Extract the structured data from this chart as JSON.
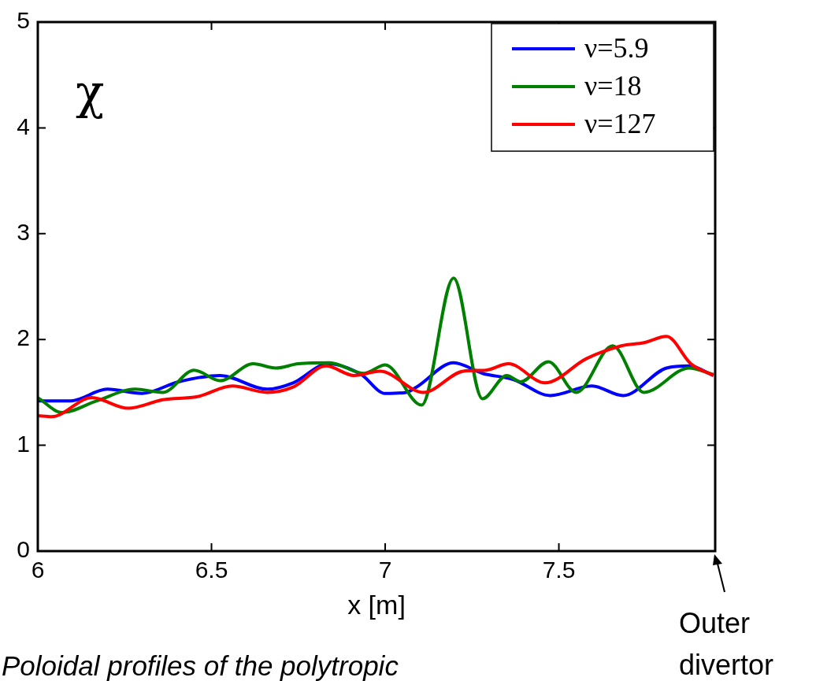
{
  "chart_data": {
    "type": "line",
    "xlabel": "x [m]",
    "xlim": [
      6,
      7.95
    ],
    "xticks": [
      6,
      6.5,
      7,
      7.5
    ],
    "ylim": [
      0,
      5
    ],
    "yticks": [
      0,
      1,
      2,
      3,
      4,
      5
    ],
    "grid": false,
    "legend": "top right",
    "marker": "none",
    "line_style": "solid",
    "annotations": [
      "χ",
      "Poloidal profiles of the polytropic",
      "Outer divertor"
    ],
    "series": [
      {
        "name": "ν=5.9",
        "color": "#0000ff",
        "x": [
          6.0,
          6.095,
          6.2,
          6.3,
          6.405,
          6.525,
          6.66,
          6.735,
          6.835,
          6.93,
          7.0,
          7.06,
          7.09,
          7.197,
          7.28,
          7.37,
          7.475,
          7.595,
          7.685,
          7.81,
          7.875,
          7.945
        ],
        "values": [
          1.42,
          1.42,
          1.53,
          1.49,
          1.6,
          1.66,
          1.53,
          1.59,
          1.77,
          1.67,
          1.49,
          1.5,
          1.55,
          1.78,
          1.68,
          1.62,
          1.47,
          1.56,
          1.47,
          1.73,
          1.75,
          1.66
        ]
      },
      {
        "name": "ν=18",
        "color": "#008000",
        "x": [
          6.0,
          6.07,
          6.17,
          6.28,
          6.36,
          6.45,
          6.525,
          6.62,
          6.685,
          6.75,
          6.84,
          6.94,
          7.0,
          7.105,
          7.197,
          7.28,
          7.35,
          7.39,
          7.47,
          7.55,
          7.655,
          7.745,
          7.875,
          7.945
        ],
        "values": [
          1.45,
          1.31,
          1.42,
          1.53,
          1.5,
          1.71,
          1.61,
          1.77,
          1.73,
          1.77,
          1.78,
          1.68,
          1.76,
          1.38,
          2.58,
          1.44,
          1.66,
          1.6,
          1.79,
          1.5,
          1.94,
          1.5,
          1.73,
          1.67
        ]
      },
      {
        "name": "ν=127",
        "color": "#ff0000",
        "x": [
          6.0,
          6.04,
          6.155,
          6.26,
          6.36,
          6.46,
          6.56,
          6.66,
          6.735,
          6.83,
          6.91,
          6.985,
          7.11,
          7.225,
          7.29,
          7.355,
          7.46,
          7.58,
          7.68,
          7.745,
          7.81,
          7.88,
          7.945
        ],
        "values": [
          1.28,
          1.27,
          1.45,
          1.35,
          1.43,
          1.46,
          1.56,
          1.5,
          1.55,
          1.75,
          1.66,
          1.7,
          1.5,
          1.7,
          1.71,
          1.77,
          1.59,
          1.82,
          1.94,
          1.97,
          2.03,
          1.77,
          1.66
        ]
      }
    ]
  }
}
